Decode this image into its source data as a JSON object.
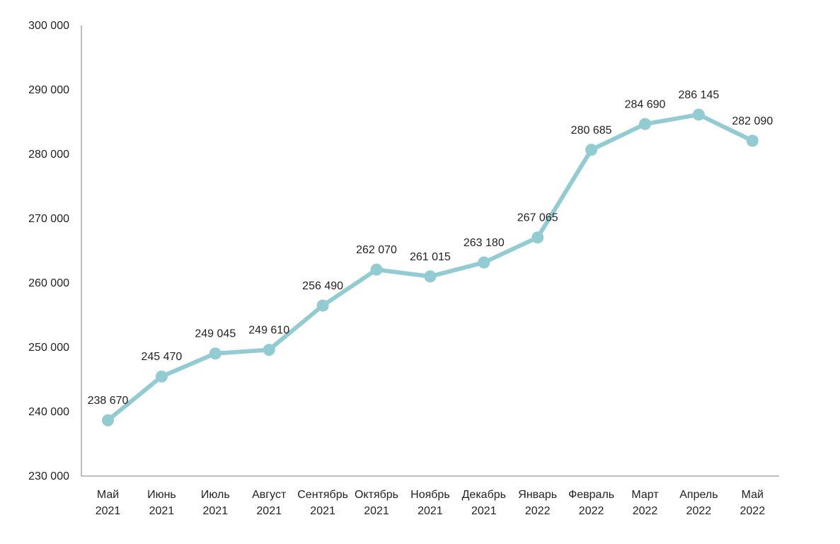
{
  "chart_data": {
    "type": "line",
    "title": "",
    "xlabel": "",
    "ylabel": "",
    "ylim": [
      230000,
      300000
    ],
    "yticks": [
      "230 000",
      "240 000",
      "250 000",
      "260 000",
      "270 000",
      "280 000",
      "290 000",
      "300 000"
    ],
    "categories": [
      [
        "Май",
        "2021"
      ],
      [
        "Июнь",
        "2021"
      ],
      [
        "Июль",
        "2021"
      ],
      [
        "Август",
        "2021"
      ],
      [
        "Сентябрь",
        "2021"
      ],
      [
        "Октябрь",
        "2021"
      ],
      [
        "Ноябрь",
        "2021"
      ],
      [
        "Декабрь",
        "2021"
      ],
      [
        "Январь",
        "2022"
      ],
      [
        "Февраль",
        "2022"
      ],
      [
        "Март",
        "2022"
      ],
      [
        "Апрель",
        "2022"
      ],
      [
        "Май",
        "2022"
      ]
    ],
    "series": [
      {
        "values": [
          238670,
          245470,
          249045,
          249610,
          256490,
          262070,
          261015,
          263180,
          267065,
          280685,
          284690,
          286145,
          282090
        ],
        "labels": [
          "238 670",
          "245 470",
          "249 045",
          "249 610",
          "256 490",
          "262 070",
          "261 015",
          "263 180",
          "267 065",
          "280 685",
          "284 690",
          "286 145",
          "282 090"
        ],
        "color": "#92CBD2"
      }
    ],
    "grid": false,
    "axis_color": "#7F7F7F"
  }
}
